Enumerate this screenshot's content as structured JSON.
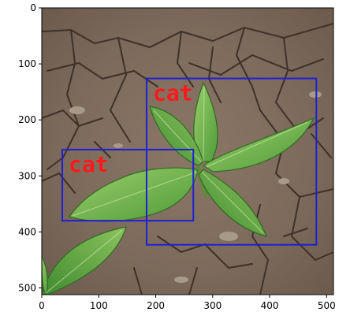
{
  "image": {
    "subject": "young green plant with serrated leaves growing from cracked dry brown soil",
    "x_range": [
      0,
      512
    ],
    "y_range": [
      0,
      512
    ],
    "x_ticks": [
      0,
      100,
      200,
      300,
      400,
      500
    ],
    "y_ticks": [
      0,
      100,
      200,
      300,
      400,
      500
    ]
  },
  "boxes": [
    {
      "label": "cat",
      "x0": 184,
      "y0": 126,
      "x1": 482,
      "y1": 423,
      "color": "#1f1fd6"
    },
    {
      "label": "cat",
      "x0": 36,
      "y0": 253,
      "x1": 266,
      "y1": 380,
      "color": "#1f1fd6"
    }
  ],
  "box_label_color": "#ff1a1a"
}
